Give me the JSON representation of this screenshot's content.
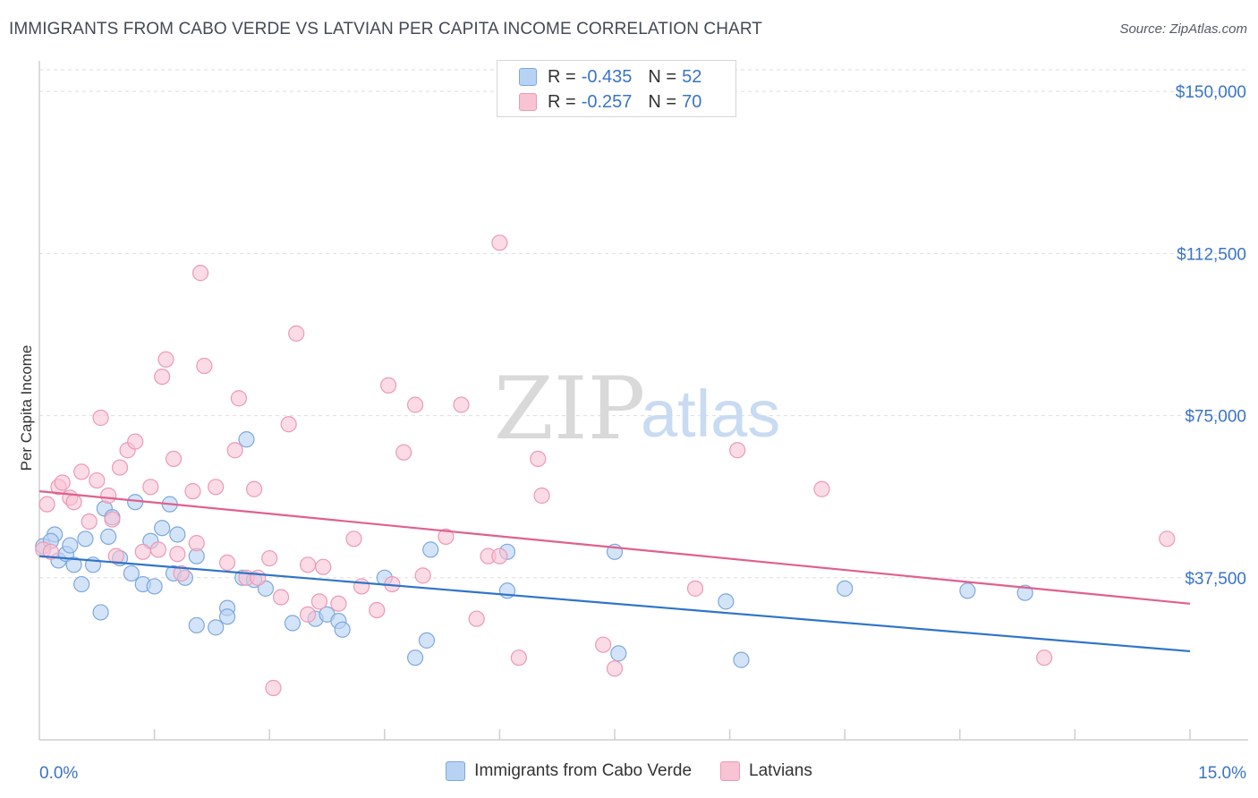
{
  "title": "IMMIGRANTS FROM CABO VERDE VS LATVIAN PER CAPITA INCOME CORRELATION CHART",
  "source": "Source: ZipAtlas.com",
  "watermark": {
    "zip": "ZIP",
    "atlas": "atlas"
  },
  "legend": {
    "rows": [
      {
        "r_label": "R =",
        "r_value": "-0.435",
        "n_label": "N =",
        "n_value": "52"
      },
      {
        "r_label": "R =",
        "r_value": "-0.257",
        "n_label": "N =",
        "n_value": "70"
      }
    ]
  },
  "colors": {
    "blue_fill": "#b8d2f3",
    "blue_stroke": "#7ea8dd",
    "blue_line": "#2f74c9",
    "pink_fill": "#f8c3d3",
    "pink_stroke": "#ec9ab6",
    "pink_line": "#e0608e",
    "tick_text": "#3a74c4",
    "grid": "#dedede"
  },
  "chart_data": {
    "type": "scatter",
    "title": "IMMIGRANTS FROM CABO VERDE VS LATVIAN PER CAPITA INCOME CORRELATION CHART",
    "xlabel": "",
    "ylabel": "Per Capita Income",
    "xlim": [
      0,
      15
    ],
    "ylim": [
      0,
      155000
    ],
    "x_tick_labels": [
      "0.0%",
      "15.0%"
    ],
    "y_ticks": [
      37500,
      75000,
      112500,
      150000
    ],
    "y_tick_labels": [
      "$37,500",
      "$75,000",
      "$112,500",
      "$150,000"
    ],
    "grid": true,
    "legend_position": "bottom",
    "series": [
      {
        "name": "Immigrants from Cabo Verde",
        "trend": {
          "x": [
            0,
            15
          ],
          "y": [
            42500,
            20500
          ]
        },
        "points": [
          [
            0.05,
            44800
          ],
          [
            0.2,
            47500
          ],
          [
            0.25,
            41500
          ],
          [
            0.35,
            43000
          ],
          [
            0.4,
            45000
          ],
          [
            0.45,
            40500
          ],
          [
            0.55,
            36000
          ],
          [
            0.6,
            46500
          ],
          [
            0.7,
            40500
          ],
          [
            0.8,
            29500
          ],
          [
            0.85,
            53500
          ],
          [
            0.9,
            47000
          ],
          [
            0.95,
            51500
          ],
          [
            1.05,
            42000
          ],
          [
            1.2,
            38500
          ],
          [
            1.25,
            55000
          ],
          [
            1.35,
            36000
          ],
          [
            1.45,
            46000
          ],
          [
            1.5,
            35500
          ],
          [
            1.6,
            49000
          ],
          [
            1.7,
            54500
          ],
          [
            1.75,
            38500
          ],
          [
            1.8,
            47500
          ],
          [
            1.9,
            37500
          ],
          [
            2.05,
            42500
          ],
          [
            2.05,
            26500
          ],
          [
            2.3,
            26000
          ],
          [
            2.45,
            30500
          ],
          [
            2.45,
            28500
          ],
          [
            2.65,
            37500
          ],
          [
            2.7,
            69500
          ],
          [
            2.8,
            37000
          ],
          [
            2.95,
            35000
          ],
          [
            3.3,
            27000
          ],
          [
            3.6,
            28000
          ],
          [
            3.75,
            29000
          ],
          [
            3.9,
            27500
          ],
          [
            3.95,
            25500
          ],
          [
            4.5,
            37500
          ],
          [
            4.9,
            19000
          ],
          [
            5.05,
            23000
          ],
          [
            5.1,
            44000
          ],
          [
            6.1,
            43500
          ],
          [
            6.1,
            34500
          ],
          [
            7.5,
            43500
          ],
          [
            7.55,
            20000
          ],
          [
            8.95,
            32000
          ],
          [
            9.15,
            18500
          ],
          [
            10.5,
            35000
          ],
          [
            12.1,
            34500
          ],
          [
            12.85,
            34000
          ],
          [
            0.15,
            46000
          ]
        ]
      },
      {
        "name": "Latvians",
        "trend": {
          "x": [
            0,
            15
          ],
          "y": [
            57500,
            31500
          ]
        },
        "points": [
          [
            0.05,
            44000
          ],
          [
            0.1,
            54500
          ],
          [
            0.15,
            43500
          ],
          [
            0.25,
            58500
          ],
          [
            0.3,
            59500
          ],
          [
            0.4,
            56000
          ],
          [
            0.45,
            55000
          ],
          [
            0.55,
            62000
          ],
          [
            0.65,
            50500
          ],
          [
            0.75,
            60000
          ],
          [
            0.8,
            74500
          ],
          [
            0.9,
            56500
          ],
          [
            0.95,
            51000
          ],
          [
            1.0,
            42500
          ],
          [
            1.05,
            63000
          ],
          [
            1.15,
            67000
          ],
          [
            1.25,
            69000
          ],
          [
            1.35,
            43500
          ],
          [
            1.45,
            58500
          ],
          [
            1.55,
            44000
          ],
          [
            1.6,
            84000
          ],
          [
            1.65,
            88000
          ],
          [
            1.75,
            65000
          ],
          [
            1.8,
            43000
          ],
          [
            1.85,
            38500
          ],
          [
            2.0,
            57500
          ],
          [
            2.05,
            45500
          ],
          [
            2.1,
            108000
          ],
          [
            2.15,
            86500
          ],
          [
            2.3,
            58500
          ],
          [
            2.45,
            41000
          ],
          [
            2.55,
            67000
          ],
          [
            2.6,
            79000
          ],
          [
            2.7,
            37500
          ],
          [
            2.8,
            58000
          ],
          [
            2.85,
            37500
          ],
          [
            3.0,
            42000
          ],
          [
            3.05,
            12000
          ],
          [
            3.15,
            33000
          ],
          [
            3.25,
            73000
          ],
          [
            3.35,
            94000
          ],
          [
            3.5,
            29000
          ],
          [
            3.5,
            40500
          ],
          [
            3.65,
            32000
          ],
          [
            3.7,
            40000
          ],
          [
            3.9,
            31500
          ],
          [
            4.1,
            46500
          ],
          [
            4.2,
            35500
          ],
          [
            4.4,
            30000
          ],
          [
            4.55,
            82000
          ],
          [
            4.6,
            36000
          ],
          [
            4.75,
            66500
          ],
          [
            4.9,
            77500
          ],
          [
            5.0,
            38000
          ],
          [
            5.3,
            47000
          ],
          [
            5.5,
            77500
          ],
          [
            5.7,
            28000
          ],
          [
            5.85,
            42500
          ],
          [
            6.0,
            115000
          ],
          [
            6.0,
            42500
          ],
          [
            6.25,
            19000
          ],
          [
            6.5,
            65000
          ],
          [
            6.55,
            56500
          ],
          [
            7.35,
            22000
          ],
          [
            7.5,
            16500
          ],
          [
            8.55,
            35000
          ],
          [
            9.1,
            67000
          ],
          [
            10.2,
            58000
          ],
          [
            13.1,
            19000
          ],
          [
            14.7,
            46500
          ]
        ]
      }
    ]
  },
  "bottom_legend": {
    "items": [
      {
        "label": "Immigrants from Cabo Verde"
      },
      {
        "label": "Latvians"
      }
    ]
  }
}
